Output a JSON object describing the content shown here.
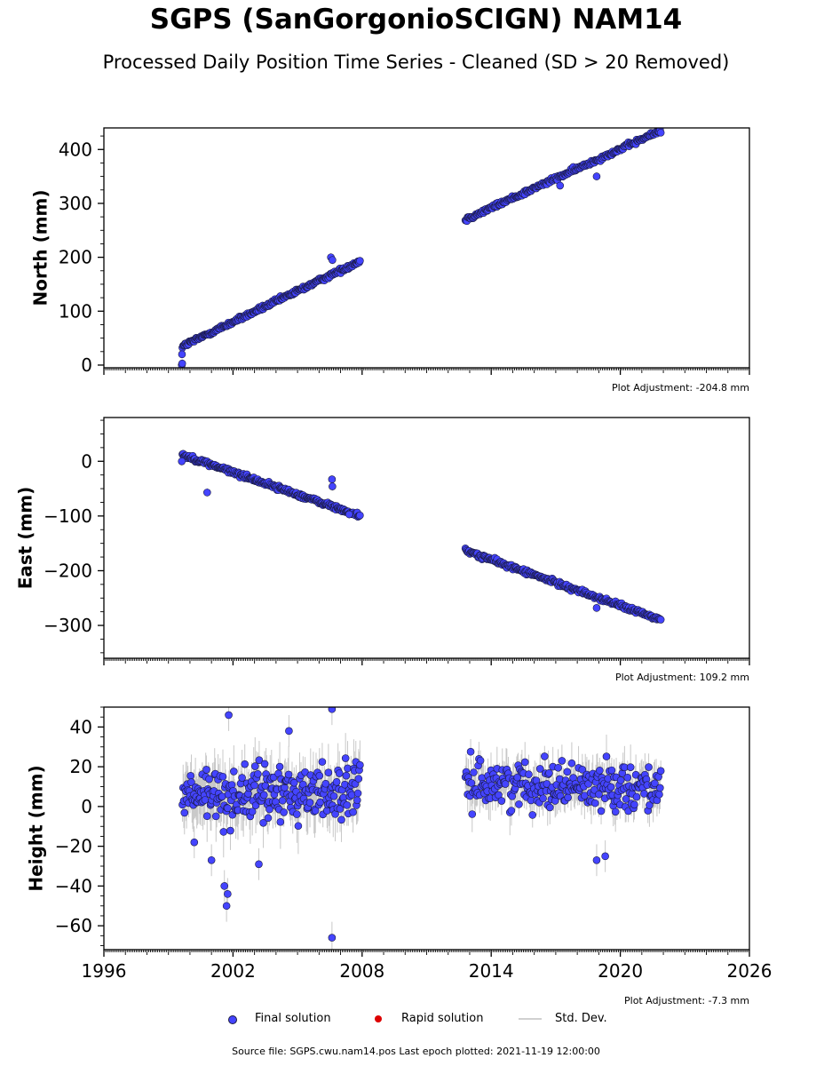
{
  "title": "SGPS (SanGorgonioSCIGN) NAM14",
  "subtitle": "Processed Daily Position Time Series - Cleaned (SD > 20 Removed)",
  "footer": "Source file: SGPS.cwu.nam14.pos  Last epoch plotted: 2021-11-19 12:00:00",
  "legend": {
    "final": "Final solution",
    "rapid": "Rapid solution",
    "std": "Std. Dev."
  },
  "colors": {
    "final": "#4444ff",
    "rapid": "#dd0000",
    "std": "#c8c8c8",
    "edge": "#1a1a40"
  },
  "chart_data": [
    {
      "type": "scatter",
      "ylabel": "North (mm)",
      "adjustment": "Plot Adjustment: -204.8 mm",
      "xlim": [
        1996,
        2026
      ],
      "ylim": [
        -5,
        440
      ],
      "yticks": [
        0,
        100,
        200,
        300,
        400
      ],
      "xticks": [
        1996,
        2002,
        2008,
        2014,
        2020,
        2026
      ],
      "show_xtick_labels": false,
      "segments": [
        {
          "x0": 1999.65,
          "x1": 2007.9,
          "y0": 35,
          "y1": 193,
          "noise": 3
        },
        {
          "x0": 2012.8,
          "x1": 2021.88,
          "y0": 270,
          "y1": 435,
          "noise": 3
        }
      ],
      "outliers": [
        [
          1999.62,
          0
        ],
        [
          1999.64,
          3
        ],
        [
          1999.63,
          20
        ],
        [
          2006.55,
          200
        ],
        [
          2006.62,
          195
        ],
        [
          2018.9,
          350
        ],
        [
          2017.2,
          333
        ]
      ]
    },
    {
      "type": "scatter",
      "ylabel": "East (mm)",
      "adjustment": "Plot Adjustment: 109.2 mm",
      "xlim": [
        1996,
        2026
      ],
      "ylim": [
        -360,
        80
      ],
      "yticks": [
        0,
        -100,
        -200,
        -300
      ],
      "xticks": [
        1996,
        2002,
        2008,
        2014,
        2020,
        2026
      ],
      "show_xtick_labels": false,
      "segments": [
        {
          "x0": 1999.65,
          "x1": 2007.9,
          "y0": 12,
          "y1": -100,
          "noise": 3
        },
        {
          "x0": 2012.8,
          "x1": 2021.88,
          "y0": -163,
          "y1": -290,
          "noise": 3
        }
      ],
      "outliers": [
        [
          1999.62,
          0
        ],
        [
          2000.8,
          -57
        ],
        [
          2006.6,
          -33
        ],
        [
          2006.62,
          -46
        ],
        [
          2018.9,
          -268
        ],
        [
          2007.4,
          -97
        ]
      ]
    },
    {
      "type": "scatter",
      "ylabel": "Height (mm)",
      "adjustment": "Plot Adjustment: -7.3 mm",
      "xlim": [
        1996,
        2026
      ],
      "ylim": [
        -72,
        50
      ],
      "yticks": [
        40,
        20,
        0,
        -20,
        -40,
        -60
      ],
      "xticks": [
        1996,
        2002,
        2008,
        2014,
        2020,
        2026
      ],
      "xtick_labels": [
        "1996",
        "2002",
        "2008",
        "2014",
        "2020",
        "2026"
      ],
      "show_xtick_labels": true,
      "segments": [
        {
          "x0": 1999.65,
          "x1": 2007.9,
          "y0": 5,
          "y1": 8,
          "noise": 10
        },
        {
          "x0": 2012.8,
          "x1": 2021.88,
          "y0": 12,
          "y1": 10,
          "noise": 8
        }
      ],
      "outliers": [
        [
          2001.8,
          46
        ],
        [
          2001.7,
          -50
        ],
        [
          2001.75,
          -44
        ],
        [
          2001.6,
          -40
        ],
        [
          2003.2,
          -29
        ],
        [
          2006.6,
          -66
        ],
        [
          2006.6,
          49
        ],
        [
          2018.9,
          -27
        ],
        [
          2019.3,
          -25
        ],
        [
          2001.0,
          -27
        ],
        [
          2000.2,
          -18
        ],
        [
          2004.6,
          38
        ]
      ]
    }
  ]
}
